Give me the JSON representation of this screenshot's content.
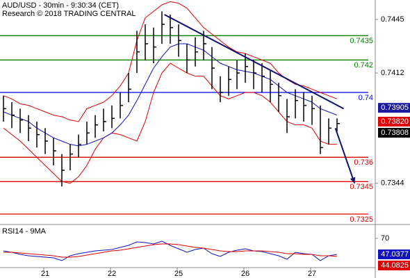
{
  "chart_data": {
    "type": "ohlc",
    "title": "AUD/USD - 30min - 9:30:34 (CET)",
    "subtitle": "Research © 2018 TRADING CENTRAL",
    "categories": [
      null,
      null,
      null,
      null,
      null,
      "21",
      null,
      null,
      null,
      null,
      null,
      null,
      null,
      "22",
      null,
      null,
      null,
      null,
      null,
      null,
      null,
      "25",
      null,
      null,
      null,
      null,
      null,
      null,
      null,
      "26",
      null,
      null,
      null,
      null,
      null,
      null,
      null,
      "27",
      null,
      null,
      null
    ],
    "high": [
      0.7398,
      0.7394,
      0.739,
      0.7386,
      0.7382,
      0.7378,
      0.7372,
      0.7362,
      0.7368,
      0.7374,
      0.7382,
      0.7386,
      0.739,
      0.7392,
      0.74,
      0.7412,
      0.7438,
      0.7442,
      0.744,
      0.745,
      0.7448,
      0.7442,
      0.743,
      0.7434,
      0.7438,
      0.7428,
      0.741,
      0.7416,
      0.742,
      0.7424,
      0.742,
      0.7418,
      0.7414,
      0.7406,
      0.7396,
      0.7402,
      0.74,
      0.7398,
      0.7392,
      0.7384,
      0.7384
    ],
    "low": [
      0.7382,
      0.7378,
      0.7375,
      0.737,
      0.7366,
      0.7362,
      0.7355,
      0.7342,
      0.7352,
      0.736,
      0.7368,
      0.7372,
      0.7376,
      0.7378,
      0.7384,
      0.7394,
      0.7412,
      0.742,
      0.7418,
      0.743,
      0.743,
      0.7422,
      0.7412,
      0.7416,
      0.742,
      0.7402,
      0.7394,
      0.7398,
      0.7402,
      0.7406,
      0.7402,
      0.74,
      0.7394,
      0.7388,
      0.7375,
      0.7384,
      0.7382,
      0.738,
      0.7362,
      0.7368,
      0.7376
    ],
    "close": [
      0.739,
      0.7386,
      0.7383,
      0.7378,
      0.7374,
      0.737,
      0.7364,
      0.7352,
      0.7362,
      0.7368,
      0.7375,
      0.738,
      0.7382,
      0.7384,
      0.7392,
      0.7402,
      0.7425,
      0.743,
      0.7428,
      0.7442,
      0.744,
      0.7432,
      0.742,
      0.7425,
      0.743,
      0.7415,
      0.74,
      0.7408,
      0.7412,
      0.7416,
      0.7412,
      0.741,
      0.7405,
      0.7398,
      0.7385,
      0.7395,
      0.7392,
      0.739,
      0.7366,
      0.7378,
      0.73808
    ],
    "bars_color": "#000000",
    "bands": {
      "color": "#e00000",
      "upper": [
        0.7398,
        0.7396,
        0.7393,
        0.7392,
        0.739,
        0.7388,
        0.7386,
        0.7385,
        0.7383,
        0.7382,
        0.739,
        0.7392,
        0.7394,
        0.7398,
        0.7404,
        0.7412,
        0.7432,
        0.7446,
        0.745,
        0.7454,
        0.7456,
        0.7455,
        0.7452,
        0.7446,
        0.744,
        0.7436,
        0.7432,
        0.7428,
        0.7425,
        0.7424,
        0.7422,
        0.742,
        0.7418,
        0.7412,
        0.7408,
        0.7405,
        0.7404,
        0.7402,
        0.74,
        0.7398,
        0.7396
      ],
      "lower": [
        0.7378,
        0.7374,
        0.737,
        0.7365,
        0.736,
        0.7355,
        0.735,
        0.7345,
        0.7344,
        0.7348,
        0.7355,
        0.7365,
        0.7372,
        0.7375,
        0.7374,
        0.7372,
        0.737,
        0.7382,
        0.74,
        0.7412,
        0.7418,
        0.7415,
        0.7412,
        0.741,
        0.741,
        0.7404,
        0.7398,
        0.7396,
        0.7398,
        0.74,
        0.74,
        0.7398,
        0.7394,
        0.7388,
        0.7382,
        0.738,
        0.738,
        0.7378,
        0.737,
        0.7368,
        0.7368
      ]
    },
    "ma": {
      "color": "#1010c0",
      "values": [
        0.7388,
        0.7386,
        0.7384,
        0.7382,
        0.7378,
        0.7375,
        0.7372,
        0.737,
        0.7368,
        0.7367,
        0.7368,
        0.737,
        0.7372,
        0.7375,
        0.738,
        0.7386,
        0.7395,
        0.7405,
        0.7415,
        0.7422,
        0.7428,
        0.743,
        0.743,
        0.7428,
        0.7426,
        0.7422,
        0.7418,
        0.7416,
        0.7414,
        0.7413,
        0.7412,
        0.741,
        0.7408,
        0.7404,
        0.74,
        0.7398,
        0.7396,
        0.7394,
        0.739,
        0.7388,
        0.7386
      ]
    },
    "ylim": [
      0.7319,
      0.7457
    ],
    "yticks": [
      0.7445,
      0.7412,
      0.7344
    ],
    "levels": [
      {
        "value": 0.7435,
        "color": "#008000"
      },
      {
        "value": 0.742,
        "color": "#008000"
      },
      {
        "value": 0.74,
        "color": "#0000ff"
      },
      {
        "value": 0.736,
        "color": "#e00000"
      },
      {
        "value": 0.7345,
        "color": "#e00000"
      },
      {
        "value": 0.7325,
        "color": "#e00000"
      }
    ],
    "trendline": {
      "x": [
        19.3,
        40.8
      ],
      "y": [
        0.7448,
        0.739
      ],
      "color": "#10106e"
    },
    "arrow": {
      "x": [
        39.8,
        42.1
      ],
      "y": [
        0.7378,
        0.7344
      ],
      "color": "#10106e"
    },
    "markers": [
      {
        "value": 0.73905,
        "color": "#1a1aa0"
      },
      {
        "value": 0.7382,
        "label": "0.73820",
        "color": "#e00000"
      }
    ],
    "last_color": "#000000",
    "rsi": {
      "title": "RSI14 - 9MA",
      "ylim": [
        28,
        88
      ],
      "yticks": [
        70
      ],
      "series": [
        {
          "color": "#1010c0",
          "values": [
            52,
            50,
            47,
            45,
            44,
            43,
            42,
            38,
            45,
            48,
            50,
            52,
            53,
            54,
            57,
            60,
            65,
            64,
            62,
            66,
            60,
            55,
            50,
            54,
            56,
            48,
            44,
            50,
            53,
            55,
            52,
            51,
            48,
            45,
            40,
            50,
            48,
            47,
            38,
            45,
            47.0377
          ]
        },
        {
          "color": "#e00000",
          "values": [
            50,
            50,
            49,
            48,
            47,
            46,
            45,
            43,
            43,
            44,
            46,
            48,
            50,
            52,
            53,
            55,
            57,
            59,
            61,
            62,
            62,
            61,
            59,
            57,
            56,
            54,
            52,
            51,
            51,
            52,
            52,
            52,
            51,
            50,
            48,
            48,
            47,
            47,
            45,
            45,
            44.0825
          ]
        }
      ]
    }
  }
}
